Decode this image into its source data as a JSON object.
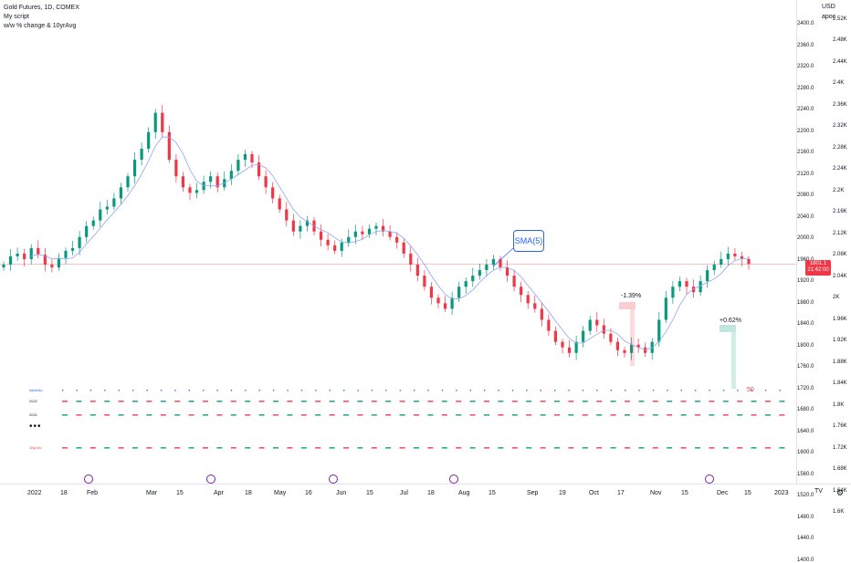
{
  "legend": {
    "symbol": "Gold Futures, 1D, COMEX",
    "script": "My script",
    "indicator": "w/w % change & 10yrAvg"
  },
  "price_axis": {
    "currency": "USD",
    "mode": "apoc",
    "left_labels": [
      "2400.0",
      "2360.0",
      "2320.0",
      "2280.0",
      "2240.0",
      "2200.0",
      "2160.0",
      "2120.0",
      "2080.0",
      "2040.0",
      "2000.0",
      "1960.0",
      "1920.0",
      "1880.0",
      "1840.0",
      "1800.0",
      "1760.0",
      "1720.0",
      "1680.0",
      "1640.0",
      "1600.0",
      "1560.0",
      "1520.0",
      "1480.0",
      "1440.0",
      "1400.0"
    ],
    "right_labels": [
      "2.56K",
      "2.52K",
      "2.48K",
      "2.44K",
      "2.4K",
      "2.36K",
      "2.32K",
      "2.28K",
      "2.24K",
      "2.2K",
      "2.16K",
      "2.12K",
      "2.08K",
      "2.04K",
      "2K",
      "1.96K",
      "1.92K",
      "1.88K",
      "1.84K",
      "1.8K",
      "1.76K",
      "1.72K",
      "1.68K",
      "1.64K",
      "1.6K"
    ],
    "last_price": "1801.1",
    "last_time": "21:42:00"
  },
  "time_axis": {
    "labels": [
      "2022",
      "18",
      "Feb",
      "Mar",
      "15",
      "Apr",
      "18",
      "May",
      "16",
      "Jun",
      "15",
      "Jul",
      "18",
      "Aug",
      "15",
      "Sep",
      "19",
      "Oct",
      "17",
      "Nov",
      "15",
      "Dec",
      "15",
      "2023"
    ]
  },
  "annotations": {
    "sma": "SMA(5)",
    "pct_down": "-1.39%",
    "pct_up": "+0.62%",
    "pct_50": "50"
  },
  "table": {
    "rows": [
      {
        "label": "weekNo",
        "color": "#2962ff"
      },
      {
        "label": "2022",
        "color": "#131722"
      },
      {
        "label": "2021",
        "color": "#131722"
      },
      {
        "label": "10yr Av",
        "color": "#f23645"
      }
    ],
    "ellipsis": "•••"
  },
  "colors": {
    "up": "#089981",
    "down": "#f23645",
    "sma": "#90a4f8",
    "event": "#7b1fa2"
  },
  "icons": {
    "tv_logo": "TV",
    "settings": "⚙"
  },
  "chart_data": {
    "type": "candlestick",
    "series": [
      {
        "name": "Gold Futures",
        "close": [
          1800,
          1815,
          1820,
          1810,
          1830,
          1818,
          1800,
          1795,
          1812,
          1825,
          1830,
          1850,
          1870,
          1880,
          1900,
          1905,
          1920,
          1940,
          1960,
          1990,
          2010,
          2040,
          2075,
          2040,
          1990,
          1960,
          1940,
          1930,
          1935,
          1950,
          1960,
          1940,
          1955,
          1970,
          1990,
          2000,
          1985,
          1960,
          1940,
          1920,
          1900,
          1880,
          1860,
          1870,
          1880,
          1860,
          1845,
          1835,
          1825,
          1840,
          1850,
          1860,
          1855,
          1865,
          1870,
          1860,
          1850,
          1840,
          1820,
          1800,
          1780,
          1760,
          1740,
          1730,
          1720,
          1740,
          1760,
          1770,
          1780,
          1790,
          1800,
          1810,
          1795,
          1780,
          1760,
          1745,
          1730,
          1720,
          1700,
          1680,
          1660,
          1650,
          1640,
          1660,
          1680,
          1700,
          1690,
          1675,
          1660,
          1645,
          1640,
          1655,
          1650,
          1640,
          1660,
          1700,
          1740,
          1760,
          1770,
          1760,
          1750,
          1770,
          1790,
          1800,
          1810,
          1820,
          1815,
          1810,
          1801
        ]
      }
    ],
    "sma_period": 5
  }
}
